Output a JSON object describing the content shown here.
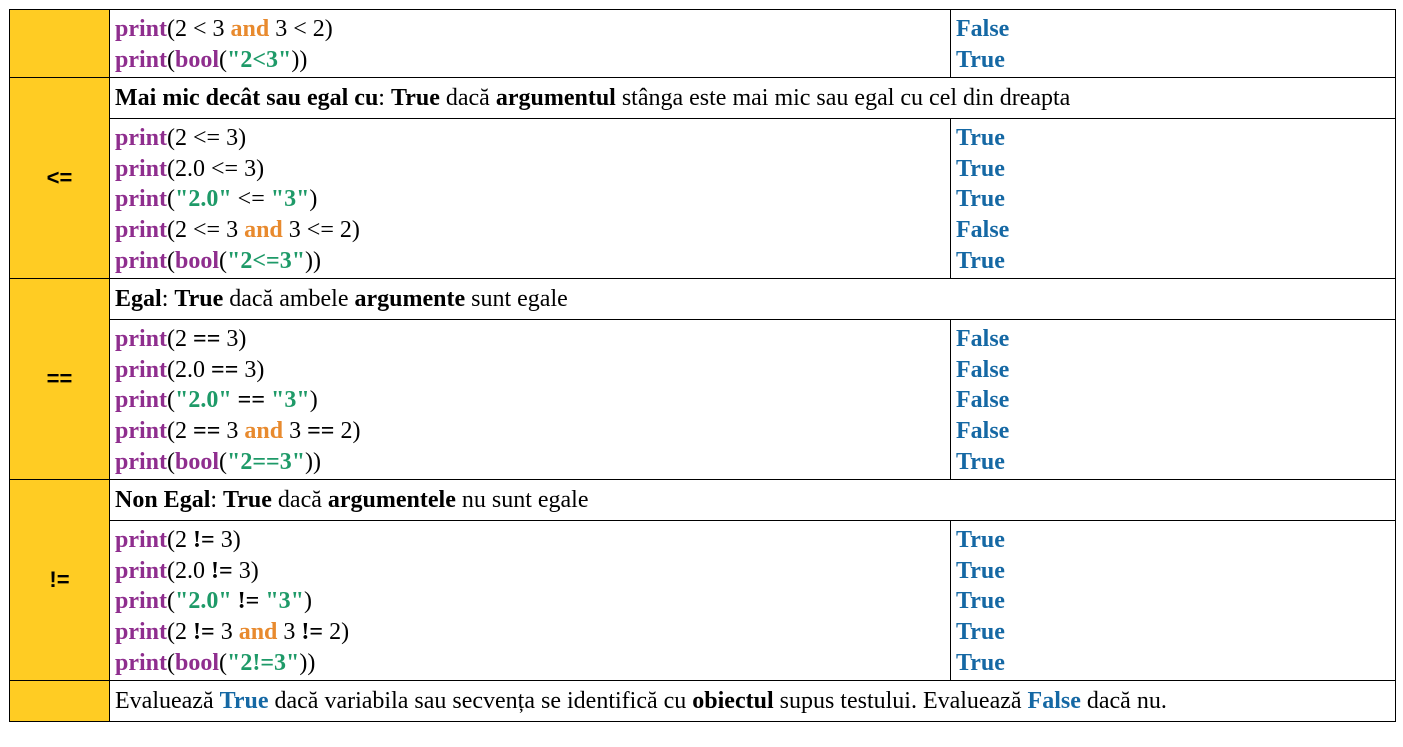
{
  "rows": [
    {
      "operator": "",
      "code": [
        "print(2 < 3 and 3 < 2)",
        "print(bool(\"2<3\"))"
      ],
      "results": [
        "False",
        "True"
      ]
    },
    {
      "operator": "<=",
      "description": "Mai mic decât sau egal cu: True dacă argumentul stânga este mai mic sau egal cu cel din dreapta",
      "code": [
        "print(2 <= 3)",
        "print(2.0 <= 3)",
        "print(\"2.0\" <= \"3\")",
        "print(2 <= 3 and 3 <= 2)",
        "print(bool(\"2<=3\"))"
      ],
      "results": [
        "True",
        "True",
        "True",
        "False",
        "True"
      ]
    },
    {
      "operator": "==",
      "description": "Egal: True dacă ambele argumente sunt egale",
      "code": [
        "print(2 == 3)",
        "print(2.0 == 3)",
        "print(\"2.0\" == \"3\")",
        "print(2 == 3 and 3 == 2)",
        "print(bool(\"2==3\"))"
      ],
      "results": [
        "False",
        "False",
        "False",
        "False",
        "True"
      ]
    },
    {
      "operator": "!=",
      "description": "Non Egal: True dacă argumentele nu sunt egale",
      "code": [
        "print(2 != 3)",
        "print(2.0 != 3)",
        "print(\"2.0\" != \"3\")",
        "print(2 != 3 and 3 != 2)",
        "print(bool(\"2!=3\"))"
      ],
      "results": [
        "True",
        "True",
        "True",
        "True",
        "True"
      ]
    },
    {
      "operator": "",
      "description": "Evaluează True dacă variabila sau secvența se identifică cu obiectul supus testului. Evaluează False dacă nu."
    }
  ],
  "colors": {
    "operator_cell_bg": "#FFCC23",
    "keyword": "#8F2E8E",
    "string_literal": "#1E9A68",
    "and_keyword": "#E88A2E",
    "boolean_value": "#1568A4"
  }
}
